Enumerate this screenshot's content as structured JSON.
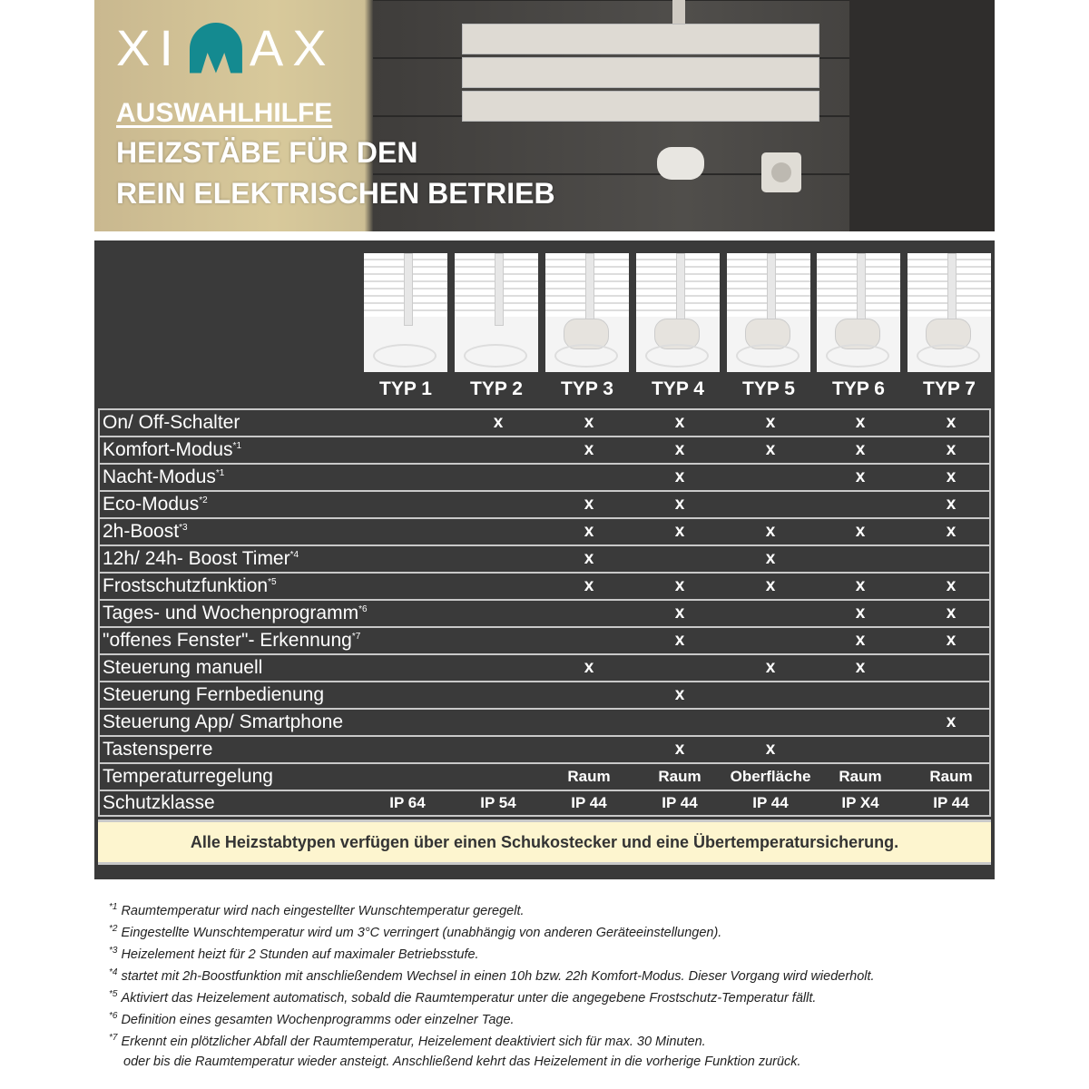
{
  "banner": {
    "logo": "XIMAX",
    "subtitle": "AUSWAHLHILFE",
    "title_line1": "HEIZSTÄBE FÜR DEN",
    "title_line2": "REIN ELEKTRISCHEN BETRIEB",
    "brand_color": "#148a90"
  },
  "table": {
    "types": [
      "TYP 1",
      "TYP 2",
      "TYP 3",
      "TYP 4",
      "TYP 5",
      "TYP 6",
      "TYP 7"
    ],
    "rows": [
      {
        "label": "On/ Off-Schalter",
        "sup": "",
        "values": [
          "",
          "x",
          "x",
          "x",
          "x",
          "x",
          "x"
        ]
      },
      {
        "label": "Komfort-Modus",
        "sup": "*1",
        "values": [
          "",
          "",
          "x",
          "x",
          "x",
          "x",
          "x"
        ]
      },
      {
        "label": "Nacht-Modus",
        "sup": "*1",
        "values": [
          "",
          "",
          "",
          "x",
          "",
          "x",
          "x"
        ]
      },
      {
        "label": "Eco-Modus",
        "sup": "*2",
        "values": [
          "",
          "",
          "x",
          "x",
          "",
          "",
          "x"
        ]
      },
      {
        "label": "2h-Boost",
        "sup": "*3",
        "values": [
          "",
          "",
          "x",
          "x",
          "x",
          "x",
          "x"
        ]
      },
      {
        "label": "12h/ 24h- Boost Timer",
        "sup": "*4",
        "values": [
          "",
          "",
          "x",
          "",
          "x",
          "",
          ""
        ]
      },
      {
        "label": "Frostschutzfunktion",
        "sup": "*5",
        "values": [
          "",
          "",
          "x",
          "x",
          "x",
          "x",
          "x"
        ]
      },
      {
        "label": "Tages- und Wochenprogramm",
        "sup": "*6",
        "values": [
          "",
          "",
          "",
          "x",
          "",
          "x",
          "x"
        ]
      },
      {
        "label": "\"offenes Fenster\"- Erkennung",
        "sup": "*7",
        "values": [
          "",
          "",
          "",
          "x",
          "",
          "x",
          "x"
        ]
      },
      {
        "label": "Steuerung manuell",
        "sup": "",
        "values": [
          "",
          "",
          "x",
          "",
          "x",
          "x",
          ""
        ]
      },
      {
        "label": "Steuerung Fernbedienung",
        "sup": "",
        "values": [
          "",
          "",
          "",
          "x",
          "",
          "",
          ""
        ]
      },
      {
        "label": "Steuerung App/ Smartphone",
        "sup": "",
        "values": [
          "",
          "",
          "",
          "",
          "",
          "",
          "x"
        ]
      },
      {
        "label": "Tastensperre",
        "sup": "",
        "values": [
          "",
          "",
          "",
          "x",
          "x",
          "",
          ""
        ]
      },
      {
        "label": "Temperaturregelung",
        "sup": "",
        "values": [
          "",
          "",
          "Raum",
          "Raum",
          "Oberfläche",
          "Raum",
          "Raum"
        ]
      },
      {
        "label": "Schutzklasse",
        "sup": "",
        "values": [
          "IP 64",
          "IP 54",
          "IP 44",
          "IP 44",
          "IP 44",
          "IP X4",
          "IP 44"
        ]
      }
    ],
    "note": "Alle Heizstabtypen verfügen über einen Schukostecker und eine Übertemperatursicherung."
  },
  "footnotes": [
    {
      "mark": "*1",
      "text": "Raumtemperatur wird nach eingestellter Wunschtemperatur geregelt."
    },
    {
      "mark": "*2",
      "text": "Eingestellte Wunschtemperatur wird um 3°C verringert (unabhängig von anderen Geräteeinstellungen)."
    },
    {
      "mark": "*3",
      "text": "Heizelement heizt für 2 Stunden auf maximaler Betriebsstufe."
    },
    {
      "mark": "*4",
      "text": "startet mit 2h-Boostfunktion mit anschließendem Wechsel in einen 10h bzw. 22h Komfort-Modus. Dieser Vorgang wird wiederholt."
    },
    {
      "mark": "*5",
      "text": "Aktiviert das Heizelement automatisch, sobald die Raumtemperatur unter die angegebene Frostschutz-Temperatur fällt."
    },
    {
      "mark": "*6",
      "text": "Definition eines gesamten Wochenprogramms oder einzelner Tage."
    },
    {
      "mark": "*7",
      "text": "Erkennt ein plötzlicher Abfall der Raumtemperatur, Heizelement deaktiviert sich für max. 30 Minuten."
    }
  ],
  "footnote_continuation": "oder bis die Raumtemperatur wieder ansteigt. Anschließend kehrt das Heizelement in die vorherige Funktion zurück."
}
